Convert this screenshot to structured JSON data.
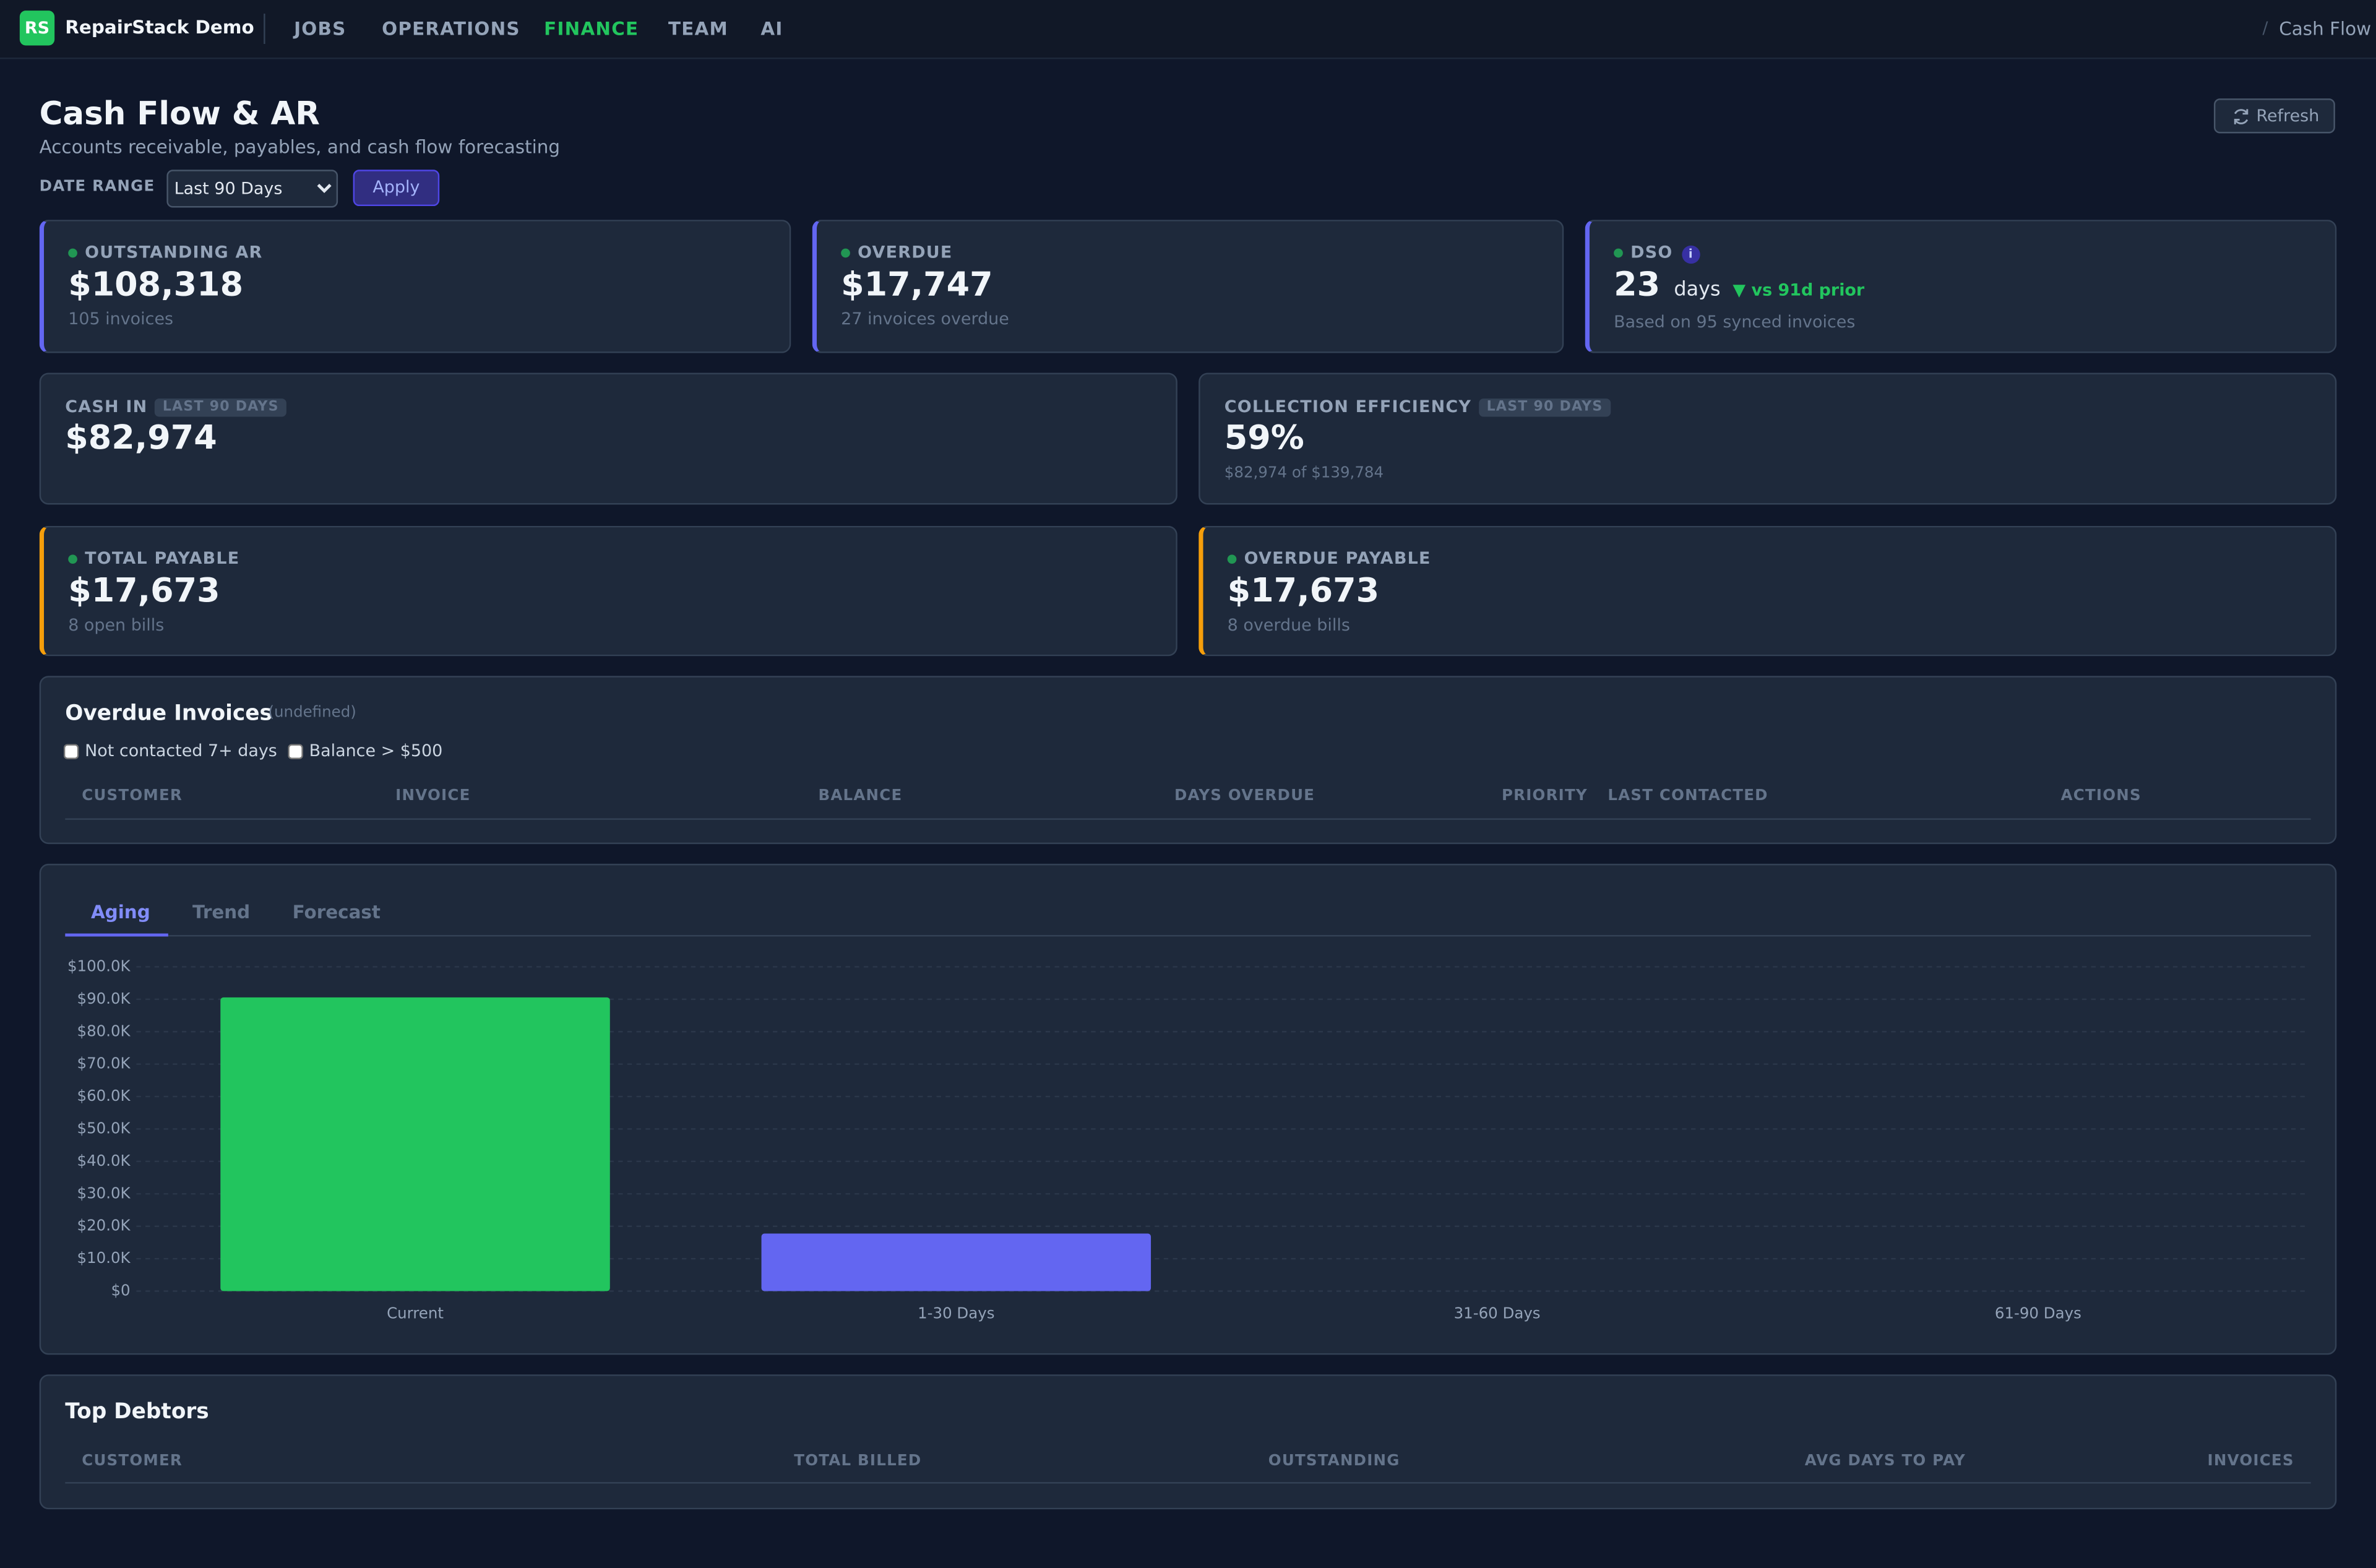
{
  "nav": {
    "logo": "RS",
    "brand": "RepairStack Demo",
    "items": [
      "JOBS",
      "OPERATIONS",
      "FINANCE",
      "TEAM",
      "AI"
    ],
    "breadcrumb_sep": "/",
    "breadcrumb": "Cash Flow"
  },
  "header": {
    "title": "Cash Flow & AR",
    "subtitle": "Accounts receivable, payables, and cash flow forecasting",
    "refresh": "Refresh",
    "date_range_label": "DATE RANGE",
    "date_range": "Last 90 Days",
    "apply": "Apply"
  },
  "kpis": [
    {
      "label": "OUTSTANDING AR",
      "value": "$108,318",
      "note": "105 invoices"
    },
    {
      "label": "OVERDUE",
      "value": "$17,747",
      "note": "27 invoices overdue"
    },
    {
      "label": "DSO",
      "info": "i",
      "value": "23",
      "unit": "days",
      "delta": "▼ vs 91d prior",
      "note": "Based on 95 synced invoices"
    },
    {
      "label": "CASH IN",
      "badge": "LAST 90 DAYS",
      "value": "$82,974"
    },
    {
      "label": "COLLECTION EFFICIENCY",
      "badge": "LAST 90 DAYS",
      "value": "59%",
      "note": "$82,974 of $139,784"
    },
    {
      "label": "TOTAL PAYABLE",
      "value": "$17,673",
      "note": "8 open bills"
    },
    {
      "label": "OVERDUE PAYABLE",
      "value": "$17,673",
      "note": "8 overdue bills"
    }
  ],
  "overdue": {
    "title": "Overdue Invoices",
    "count": "(undefined)",
    "filters": [
      "Not contacted 7+ days",
      "Balance > $500"
    ],
    "columns": [
      "CUSTOMER",
      "INVOICE",
      "BALANCE",
      "DAYS OVERDUE",
      "PRIORITY",
      "LAST CONTACTED",
      "ACTIONS"
    ]
  },
  "tabs": [
    "Aging",
    "Trend",
    "Forecast"
  ],
  "chart_data": {
    "type": "bar",
    "categories": [
      "Current",
      "1-30 Days",
      "31-60 Days",
      "61-90 Days"
    ],
    "values": [
      90571,
      17747,
      0,
      0
    ],
    "colors": [
      "#22c55e",
      "#6366f1",
      "#f59e0b",
      "#ef4444"
    ],
    "ylim": [
      0,
      100000
    ],
    "yticks": [
      {
        "value": 0,
        "label": "$0"
      },
      {
        "value": 10000,
        "label": "$10.0K"
      },
      {
        "value": 20000,
        "label": "$20.0K"
      },
      {
        "value": 30000,
        "label": "$30.0K"
      },
      {
        "value": 40000,
        "label": "$40.0K"
      },
      {
        "value": 50000,
        "label": "$50.0K"
      },
      {
        "value": 60000,
        "label": "$60.0K"
      },
      {
        "value": 70000,
        "label": "$70.0K"
      },
      {
        "value": 80000,
        "label": "$80.0K"
      },
      {
        "value": 90000,
        "label": "$90.0K"
      },
      {
        "value": 100000,
        "label": "$100.0K"
      }
    ],
    "grid": true
  },
  "debtors": {
    "title": "Top Debtors",
    "columns": [
      "CUSTOMER",
      "TOTAL BILLED",
      "OUTSTANDING",
      "AVG DAYS TO PAY",
      "INVOICES"
    ]
  }
}
